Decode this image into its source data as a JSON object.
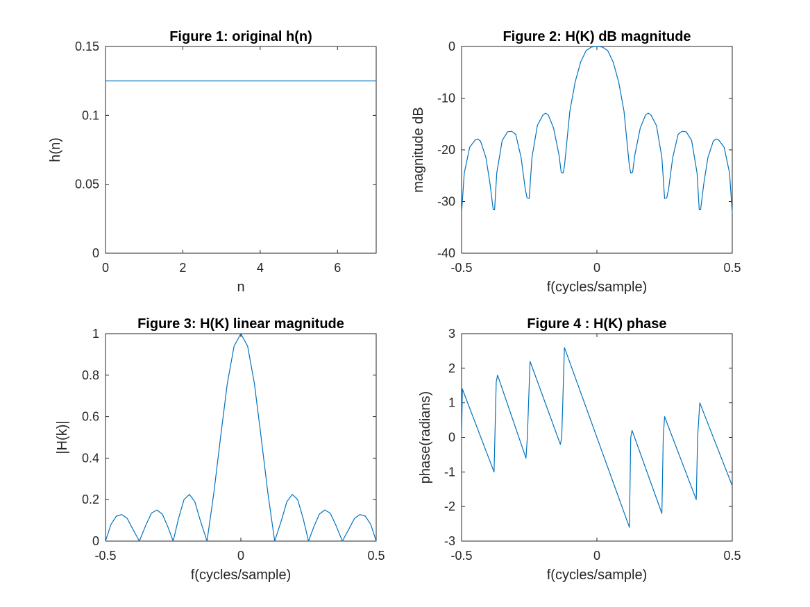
{
  "chart_data": [
    {
      "id": "fig1",
      "type": "line",
      "title": "Figure 1: original h(n)",
      "xlabel": "n",
      "ylabel": "h(n)",
      "xlim": [
        0,
        7
      ],
      "ylim": [
        0,
        0.15
      ],
      "xticks": [
        0,
        2,
        4,
        6
      ],
      "xticklabels": [
        "0",
        "2",
        "4",
        "6"
      ],
      "yticks": [
        0,
        0.05,
        0.1,
        0.15
      ],
      "yticklabels": [
        "0",
        "0.05",
        "0.1",
        "0.15"
      ],
      "series": [
        {
          "color": "#0072bd",
          "x": [
            0,
            7
          ],
          "y": [
            0.125,
            0.125
          ]
        }
      ]
    },
    {
      "id": "fig2",
      "type": "line",
      "title": "Figure 2: H(K) dB magnitude",
      "xlabel": "f(cycles/sample)",
      "ylabel": "magnitude dB",
      "xlim": [
        -0.5,
        0.5
      ],
      "ylim": [
        -40,
        0
      ],
      "xticks": [
        -0.5,
        0,
        0.5
      ],
      "xticklabels": [
        "-0.5",
        "0",
        "0.5"
      ],
      "yticks": [
        -40,
        -30,
        -20,
        -10,
        0
      ],
      "yticklabels": [
        "-40",
        "-30",
        "-20",
        "-10",
        "0"
      ],
      "series": [
        {
          "color": "#0072bd",
          "x": [
            -0.5,
            -0.49,
            -0.47,
            -0.45,
            -0.44,
            -0.43,
            -0.41,
            -0.395,
            -0.383,
            -0.378,
            -0.37,
            -0.35,
            -0.33,
            -0.315,
            -0.3,
            -0.28,
            -0.265,
            -0.258,
            -0.25,
            -0.24,
            -0.22,
            -0.2,
            -0.19,
            -0.18,
            -0.16,
            -0.14,
            -0.132,
            -0.125,
            -0.12,
            -0.1,
            -0.08,
            -0.06,
            -0.04,
            -0.02,
            0,
            0.02,
            0.04,
            0.06,
            0.08,
            0.1,
            0.12,
            0.125,
            0.132,
            0.14,
            0.16,
            0.18,
            0.19,
            0.2,
            0.22,
            0.24,
            0.25,
            0.258,
            0.265,
            0.28,
            0.3,
            0.315,
            0.33,
            0.35,
            0.37,
            0.378,
            0.383,
            0.395,
            0.41,
            0.43,
            0.44,
            0.45,
            0.47,
            0.49,
            0.5
          ],
          "y": [
            -32.2,
            -24.5,
            -19.5,
            -18.1,
            -17.9,
            -18.3,
            -21.5,
            -26.5,
            -31.6,
            -31.6,
            -24.5,
            -18.2,
            -16.5,
            -16.4,
            -17.0,
            -21.5,
            -27.5,
            -29.3,
            -29.4,
            -21.5,
            -15.3,
            -13.3,
            -12.9,
            -13.2,
            -15.8,
            -21.0,
            -24.3,
            -24.5,
            -23.2,
            -12.5,
            -6.8,
            -3.0,
            -0.8,
            -0.1,
            0,
            -0.1,
            -0.8,
            -3.0,
            -6.8,
            -12.5,
            -23.2,
            -24.5,
            -24.3,
            -21.0,
            -15.8,
            -13.2,
            -12.9,
            -13.3,
            -15.3,
            -21.5,
            -29.4,
            -29.3,
            -27.5,
            -21.5,
            -17.0,
            -16.4,
            -16.5,
            -18.2,
            -24.5,
            -31.6,
            -31.6,
            -26.5,
            -21.5,
            -18.3,
            -17.9,
            -18.1,
            -19.5,
            -24.5,
            -32.2
          ]
        }
      ]
    },
    {
      "id": "fig3",
      "type": "line",
      "title": "Figure 3: H(K) linear magnitude",
      "xlabel": "f(cycles/sample)",
      "ylabel": "|H(k)|",
      "xlim": [
        -0.5,
        0.5
      ],
      "ylim": [
        0,
        1
      ],
      "xticks": [
        -0.5,
        0,
        0.5
      ],
      "xticklabels": [
        "-0.5",
        "0",
        "0.5"
      ],
      "yticks": [
        0,
        0.2,
        0.4,
        0.6,
        0.8,
        1
      ],
      "yticklabels": [
        "0",
        "0.2",
        "0.4",
        "0.6",
        "0.8",
        "1"
      ],
      "series": [
        {
          "color": "#0072bd",
          "x": [
            -0.5,
            -0.48,
            -0.46,
            -0.44,
            -0.42,
            -0.4,
            -0.375,
            -0.35,
            -0.33,
            -0.31,
            -0.29,
            -0.27,
            -0.25,
            -0.23,
            -0.21,
            -0.19,
            -0.17,
            -0.15,
            -0.125,
            -0.1,
            -0.075,
            -0.05,
            -0.025,
            0,
            0.025,
            0.05,
            0.075,
            0.1,
            0.125,
            0.15,
            0.17,
            0.19,
            0.21,
            0.23,
            0.25,
            0.27,
            0.29,
            0.31,
            0.33,
            0.35,
            0.375,
            0.4,
            0.42,
            0.44,
            0.46,
            0.48,
            0.5
          ],
          "y": [
            0.0,
            0.08,
            0.12,
            0.128,
            0.11,
            0.06,
            0.0,
            0.08,
            0.135,
            0.15,
            0.13,
            0.07,
            0.0,
            0.11,
            0.2,
            0.225,
            0.19,
            0.1,
            0.0,
            0.23,
            0.5,
            0.76,
            0.94,
            1.0,
            0.94,
            0.76,
            0.5,
            0.23,
            0.0,
            0.1,
            0.19,
            0.225,
            0.2,
            0.11,
            0.0,
            0.07,
            0.13,
            0.15,
            0.135,
            0.08,
            0.0,
            0.06,
            0.11,
            0.128,
            0.12,
            0.08,
            0.0
          ]
        }
      ]
    },
    {
      "id": "fig4",
      "type": "line",
      "title": "Figure 4 : H(K) phase",
      "xlabel": "f(cycles/sample)",
      "ylabel": "phase(radians)",
      "xlim": [
        -0.5,
        0.5
      ],
      "ylim": [
        -3,
        3
      ],
      "xticks": [
        -0.5,
        0,
        0.5
      ],
      "xticklabels": [
        "-0.5",
        "0",
        "0.5"
      ],
      "yticks": [
        -3,
        -2,
        -1,
        0,
        1,
        2,
        3
      ],
      "yticklabels": [
        "-3",
        "-2",
        "-1",
        "0",
        "1",
        "2",
        "3"
      ],
      "series": [
        {
          "color": "#0072bd",
          "x": [
            -0.5,
            -0.497,
            -0.38,
            -0.372,
            -0.367,
            -0.262,
            -0.257,
            -0.247,
            -0.135,
            -0.13,
            -0.12,
            0.12,
            0.125,
            0.13,
            0.24,
            0.245,
            0.25,
            0.367,
            0.372,
            0.38,
            0.5
          ],
          "y": [
            0,
            1.4,
            -1.0,
            1.6,
            1.8,
            -0.6,
            0,
            2.2,
            -0.2,
            0,
            2.6,
            -2.6,
            0,
            0.2,
            -2.2,
            0,
            0.6,
            -1.8,
            0,
            1.0,
            -1.4
          ]
        }
      ]
    }
  ]
}
